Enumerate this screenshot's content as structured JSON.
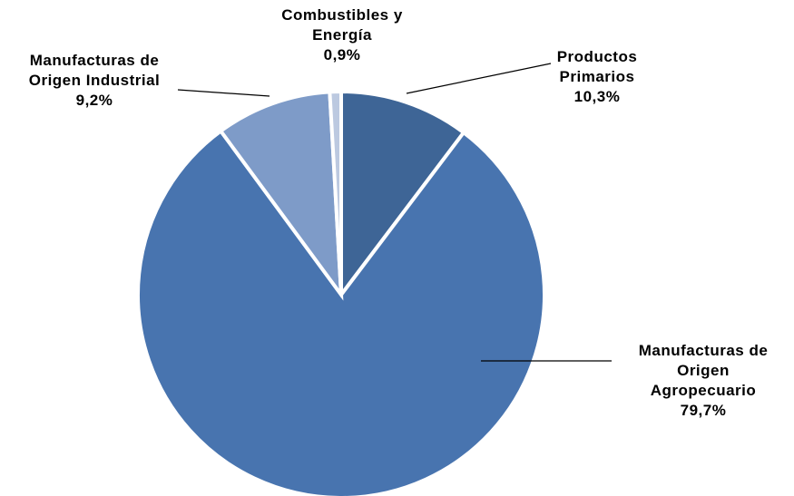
{
  "chart_data": {
    "type": "pie",
    "title": "",
    "start_angle_deg": 0,
    "direction": "clockwise",
    "slices": [
      {
        "label_lines": [
          "Productos",
          "Primarios"
        ],
        "value_label": "10,3%",
        "value": 10.3,
        "color": "#3E6596"
      },
      {
        "label_lines": [
          "Manufacturas de",
          "Origen",
          "Agropecuario"
        ],
        "value_label": "79,7%",
        "value": 79.7,
        "color": "#4874AF"
      },
      {
        "label_lines": [
          "Manufacturas de",
          "Origen Industrial"
        ],
        "value_label": "9,2%",
        "value": 9.2,
        "color": "#7E9BC8"
      },
      {
        "label_lines": [
          "Combustibles y",
          "Energía"
        ],
        "value_label": "0,9%",
        "value": 0.9,
        "color": "#BCC9E0"
      }
    ],
    "legend": "none",
    "separator_color": "#ffffff",
    "leader_color": "#000000"
  }
}
